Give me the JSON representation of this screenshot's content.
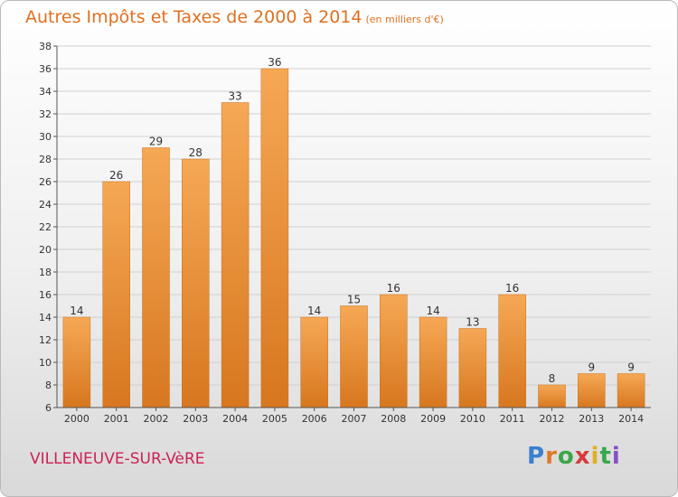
{
  "header": {
    "title": "Autres Impôts et Taxes de 2000 à 2014",
    "unit": "(en milliers d'€)"
  },
  "footer": {
    "city": "VILLENEUVE-SUR-VèRE",
    "logo": "Proxiti"
  },
  "colors": {
    "bar_top": "#f6a855",
    "bar_bottom": "#d7771f",
    "title": "#e07020",
    "city": "#cc2255"
  },
  "chart_data": {
    "type": "bar",
    "title": "Autres Impôts et Taxes de 2000 à 2014",
    "subtitle": "(en milliers d'€)",
    "categories": [
      "2000",
      "2001",
      "2002",
      "2003",
      "2004",
      "2005",
      "2006",
      "2007",
      "2008",
      "2009",
      "2010",
      "2011",
      "2012",
      "2013",
      "2014"
    ],
    "values": [
      14,
      26,
      29,
      28,
      33,
      36,
      14,
      15,
      16,
      14,
      13,
      16,
      8,
      9,
      9
    ],
    "ylim": [
      6,
      38
    ],
    "yticks": [
      6,
      8,
      10,
      12,
      14,
      16,
      18,
      20,
      22,
      24,
      26,
      28,
      30,
      32,
      34,
      36,
      38
    ],
    "grid": true,
    "legend": "none"
  }
}
